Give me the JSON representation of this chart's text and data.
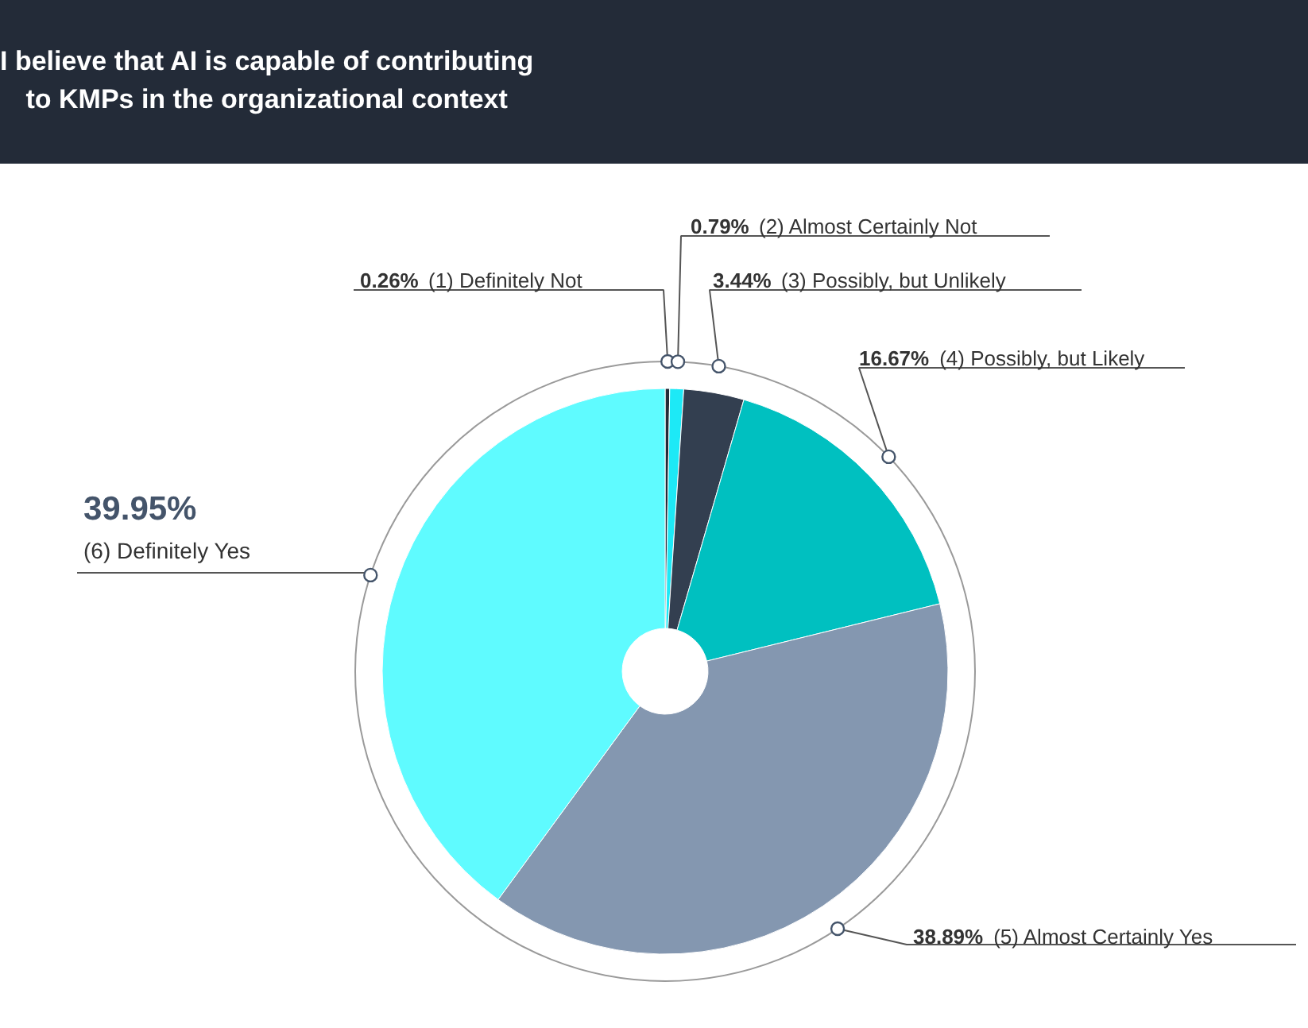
{
  "chart_data": {
    "type": "donut",
    "title": "I believe that AI is capable of contributing\nto KMPs in the organizational context",
    "categories": [
      "(1) Definitely Not",
      "(2) Almost Certainly Not",
      "(3) Possibly, but Unlikely",
      "(4) Possibly, but Likely",
      "(5) Almost Certainly Yes",
      "(6) Definitely Yes"
    ],
    "values": [
      0.26,
      0.79,
      3.44,
      16.67,
      38.89,
      39.95
    ],
    "colors": [
      "#232b38",
      "#1de9f6",
      "#333f50",
      "#00c0c0",
      "#8497b0",
      "#5ffbff"
    ],
    "value_labels": [
      "0.26%",
      "0.79%",
      "3.44%",
      "16.67%",
      "38.89%",
      "39.95%"
    ]
  }
}
